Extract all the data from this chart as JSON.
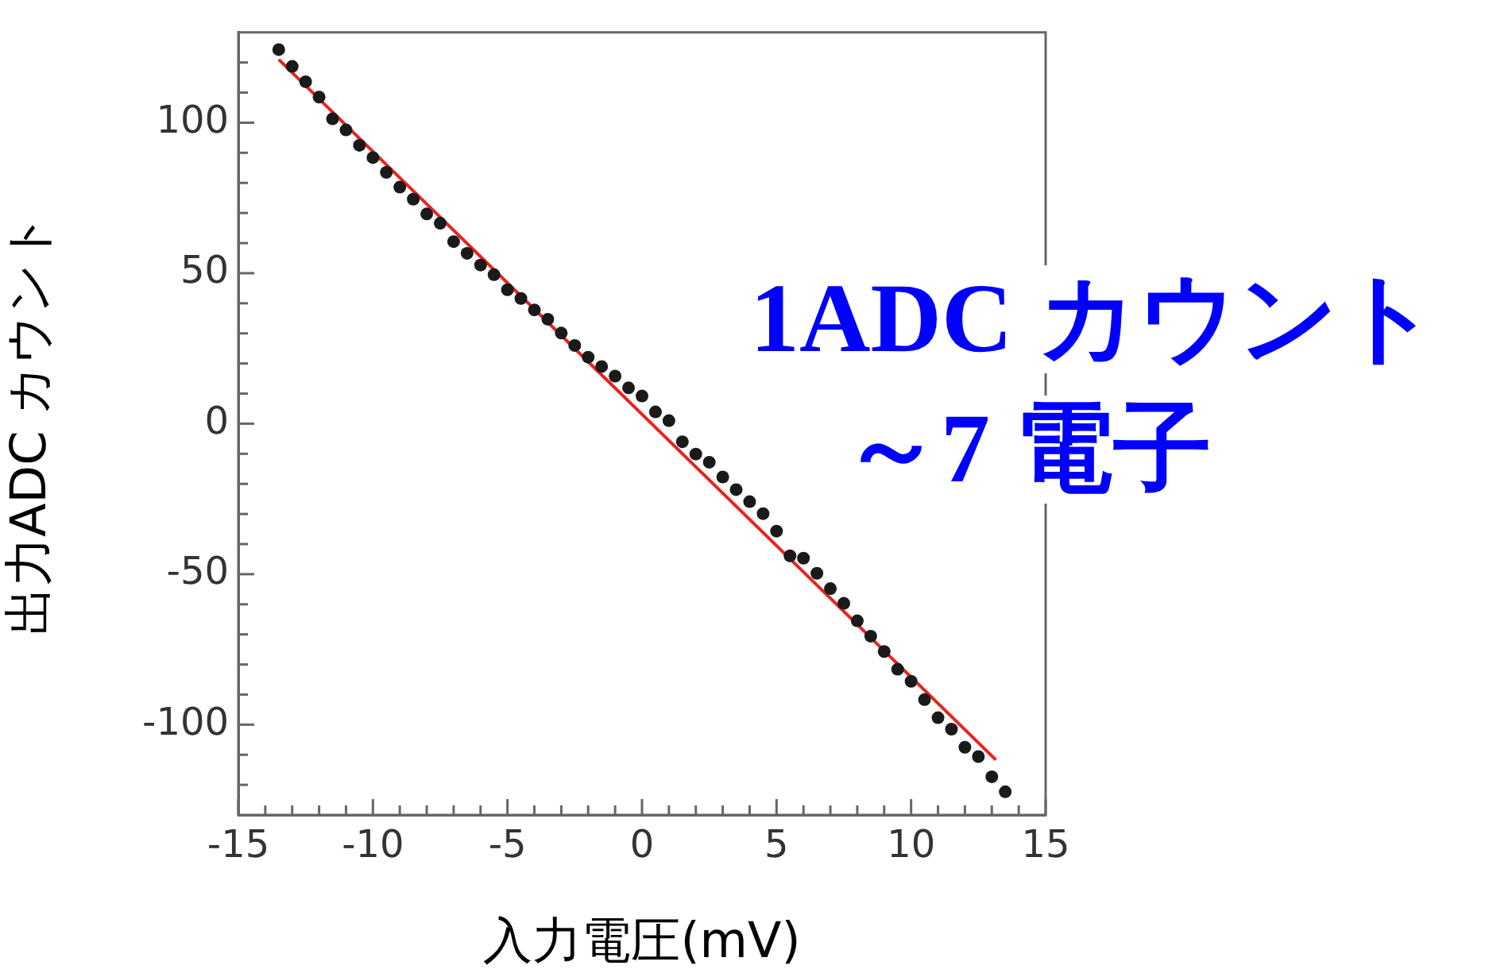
{
  "chart_data": {
    "type": "scatter",
    "xlabel": "入力電圧(mV)",
    "ylabel": "出力ADC カウント",
    "annotations": [
      "1ADC カウント",
      "～7 電子"
    ],
    "xlim": [
      -15,
      15
    ],
    "ylim": [
      -130,
      130
    ],
    "xticks": [
      -15,
      {
        "value": -14,
        "label": null
      },
      {
        "value": -13,
        "label": null
      },
      {
        "value": -12,
        "label": null
      },
      {
        "value": -11,
        "label": null
      },
      -10,
      {
        "value": -9,
        "label": null
      },
      {
        "value": -8,
        "label": null
      },
      {
        "value": -7,
        "label": null
      },
      {
        "value": -6,
        "label": null
      },
      -5,
      {
        "value": -4,
        "label": null
      },
      {
        "value": -3,
        "label": null
      },
      {
        "value": -2,
        "label": null
      },
      {
        "value": -1,
        "label": null
      },
      0,
      {
        "value": 1,
        "label": null
      },
      {
        "value": 2,
        "label": null
      },
      {
        "value": 3,
        "label": null
      },
      {
        "value": 4,
        "label": null
      },
      5,
      {
        "value": 6,
        "label": null
      },
      {
        "value": 7,
        "label": null
      },
      {
        "value": 8,
        "label": null
      },
      {
        "value": 9,
        "label": null
      },
      10,
      {
        "value": 11,
        "label": null
      },
      {
        "value": 12,
        "label": null
      },
      {
        "value": 13,
        "label": null
      },
      {
        "value": 14,
        "label": null
      },
      15
    ],
    "yticks": [
      {
        "value": -120,
        "label": null
      },
      {
        "value": -110,
        "label": null
      },
      -100,
      {
        "value": -90,
        "label": null
      },
      {
        "value": -80,
        "label": null
      },
      {
        "value": -70,
        "label": null
      },
      {
        "value": -60,
        "label": null
      },
      -50,
      {
        "value": -40,
        "label": null
      },
      {
        "value": -30,
        "label": null
      },
      {
        "value": -20,
        "label": null
      },
      {
        "value": -10,
        "label": null
      },
      0,
      {
        "value": 10,
        "label": null
      },
      {
        "value": 20,
        "label": null
      },
      {
        "value": 30,
        "label": null
      },
      {
        "value": 40,
        "label": null
      },
      50,
      {
        "value": 60,
        "label": null
      },
      {
        "value": 70,
        "label": null
      },
      {
        "value": 80,
        "label": null
      },
      {
        "value": 90,
        "label": null
      },
      100,
      {
        "value": 110,
        "label": null
      },
      {
        "value": 120,
        "label": null
      }
    ],
    "grid": false,
    "legend": false,
    "marker": "circle",
    "series": [
      {
        "color": "#1a1a1a",
        "x": [
          -13.5,
          -13,
          -12.5,
          -12,
          -11.5,
          -11,
          -10.5,
          -10,
          -9.5,
          -9,
          -8.5,
          -8,
          -7.5,
          -7,
          -6.5,
          -6,
          -5.5,
          -5,
          -4.5,
          -4,
          -3.5,
          -3,
          -2.5,
          -2,
          -1.5,
          -1,
          -0.5,
          0,
          0.5,
          1,
          1.5,
          2,
          2.5,
          3,
          3.5,
          4,
          4.5,
          5,
          5.5,
          6,
          6.5,
          7,
          7.5,
          8,
          8.5,
          9,
          9.5,
          10,
          10.5,
          11,
          11.5,
          12,
          12.5,
          13,
          13.5
        ],
        "values": [
          124.3,
          118.7,
          113.6,
          108.5,
          101.3,
          97.6,
          92.5,
          88.4,
          83.5,
          78.6,
          74.6,
          69.7,
          66.6,
          60.5,
          56.6,
          52.7,
          49.5,
          44.5,
          41.6,
          37.8,
          34.7,
          30.1,
          26.0,
          22.1,
          19.0,
          15.8,
          11.9,
          9.2,
          3.9,
          1.0,
          -6.0,
          -10.1,
          -12.8,
          -17.7,
          -21.9,
          -25.9,
          -29.9,
          -35.7,
          -43.9,
          -44.7,
          -49.7,
          -54.8,
          -59.7,
          -65.5,
          -70.6,
          -75.7,
          -81.6,
          -85.6,
          -91.7,
          -97.7,
          -101.5,
          -107.5,
          -110.6,
          -117.3,
          -122.3
        ]
      },
      {
        "type": "line",
        "color": "#e8231f",
        "marker": "none",
        "x": [
          -13.5,
          13.15
        ],
        "values": [
          121,
          -111.7
        ]
      }
    ]
  }
}
